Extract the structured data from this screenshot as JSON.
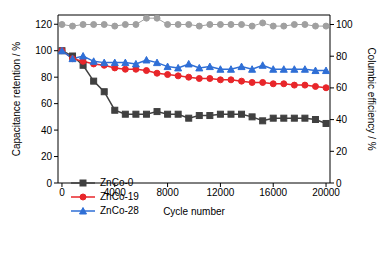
{
  "chart_data": {
    "type": "line",
    "x_label": "Cycle number",
    "y_label": "Capacitance retention / %",
    "y2_label": "Columbic efficiency / %",
    "xlim": [
      -300,
      20300
    ],
    "xticks": [
      0,
      4000,
      8000,
      12000,
      16000,
      20000
    ],
    "ylim": [
      0,
      127
    ],
    "yticks": [
      0,
      20,
      40,
      60,
      80,
      100,
      120
    ],
    "y2lim": [
      0,
      106
    ],
    "y2ticks": [
      0,
      20,
      40,
      60,
      80,
      100
    ],
    "grid": false,
    "legend": "lower left",
    "x": [
      0,
      800,
      1600,
      2400,
      3200,
      4000,
      4800,
      5600,
      6400,
      7200,
      8000,
      8800,
      9600,
      10400,
      11200,
      12000,
      12800,
      13600,
      14400,
      15200,
      16000,
      16800,
      17600,
      18400,
      19200,
      20000
    ],
    "series": [
      {
        "name": "ZnCo-0",
        "color": "#404040",
        "marker": "square",
        "line_style": "solid",
        "values": [
          100,
          96,
          89,
          77,
          69,
          55,
          52,
          52,
          52,
          54,
          52,
          52,
          49,
          51,
          51,
          52,
          52,
          52,
          50,
          47,
          49,
          49,
          49,
          49,
          48,
          45
        ]
      },
      {
        "name": "ZnCo-19",
        "color": "#e8262a",
        "marker": "circle",
        "line_style": "solid",
        "values": [
          100,
          94,
          92,
          90,
          89,
          87,
          86,
          86,
          85,
          83,
          82,
          81,
          80,
          79,
          79,
          78,
          78,
          77,
          76,
          76,
          75,
          75,
          74,
          74,
          73,
          72
        ]
      },
      {
        "name": "ZnCo-28",
        "color": "#2f6fd6",
        "marker": "triangle",
        "line_style": "solid",
        "values": [
          100,
          94,
          96,
          92,
          91,
          91,
          91,
          90,
          93,
          91,
          88,
          87,
          90,
          87,
          88,
          86,
          86,
          88,
          86,
          89,
          86,
          86,
          86,
          86,
          85,
          85
        ]
      },
      {
        "color": "#a0a0a0",
        "marker": "circle",
        "line_style": "solid",
        "axis": "y2",
        "values": [
          100,
          99,
          100,
          100,
          100,
          99,
          100,
          100,
          104,
          104,
          100,
          100,
          100,
          99,
          100,
          100,
          100,
          100,
          99,
          101,
          99,
          99,
          100,
          100,
          99,
          99
        ]
      }
    ]
  }
}
